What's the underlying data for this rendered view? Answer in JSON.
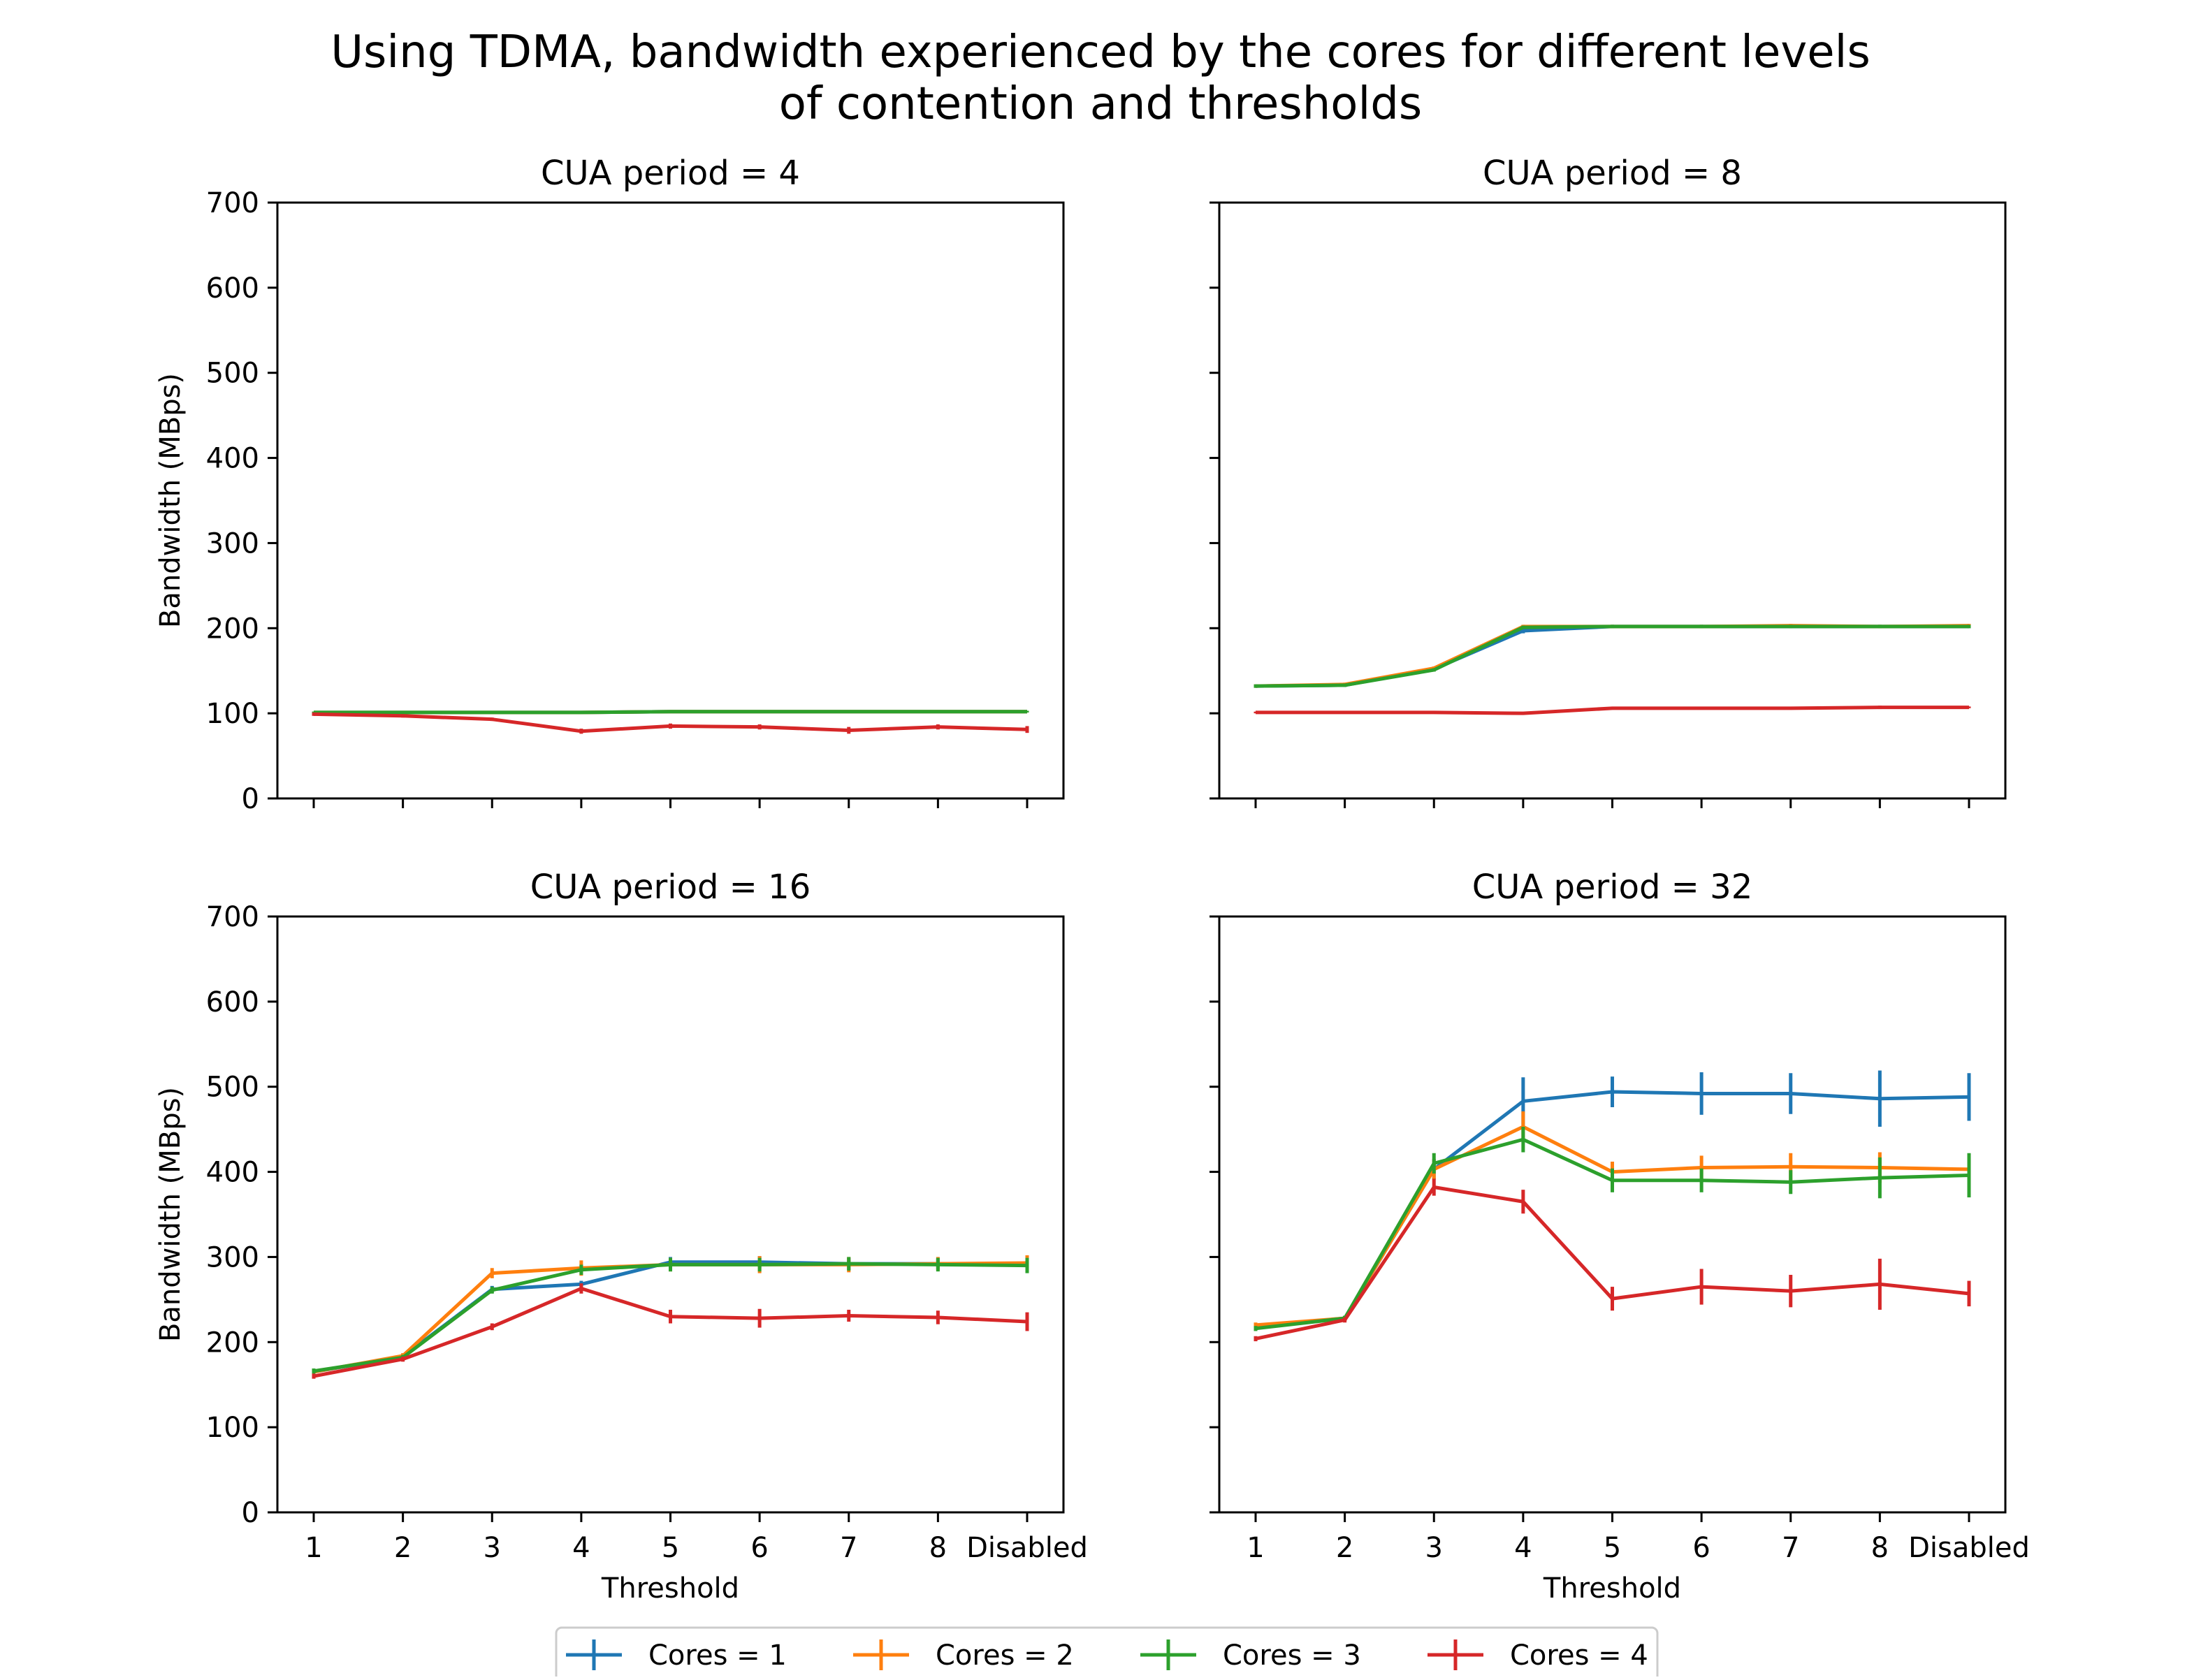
{
  "title": {
    "line1": "Using TDMA, bandwidth experienced by the cores for different levels",
    "line2": "of contention and thresholds"
  },
  "colors": {
    "Cores = 1": "#1f77b4",
    "Cores = 2": "#ff7f0e",
    "Cores = 3": "#2ca02c",
    "Cores = 4": "#d62728"
  },
  "legend": {
    "placement": "bottom-center",
    "entries": [
      "Cores = 1",
      "Cores = 2",
      "Cores = 3",
      "Cores = 4"
    ]
  },
  "chart_data": [
    {
      "type": "line",
      "title": "CUA period = 4",
      "xlabel": "",
      "ylabel": "Bandwidth (MBps)",
      "categories": [
        "1",
        "2",
        "3",
        "4",
        "5",
        "6",
        "7",
        "8",
        "Disabled"
      ],
      "ylim": [
        0,
        700
      ],
      "yticks": [
        0,
        100,
        200,
        300,
        400,
        500,
        600,
        700
      ],
      "show_xticklabels": false,
      "show_yticklabels": true,
      "grid": false,
      "series": [
        {
          "name": "Cores = 1",
          "values": [
            101,
            101,
            101,
            101,
            102,
            102,
            102,
            102,
            102
          ],
          "errors": [
            1,
            1,
            1,
            1,
            1,
            1,
            1,
            1,
            1
          ]
        },
        {
          "name": "Cores = 2",
          "values": [
            101,
            101,
            101,
            101,
            102,
            102,
            102,
            102,
            102
          ],
          "errors": [
            1,
            1,
            1,
            1,
            1,
            1,
            1,
            1,
            1
          ]
        },
        {
          "name": "Cores = 3",
          "values": [
            101,
            101,
            101,
            101,
            102,
            102,
            102,
            102,
            102
          ],
          "errors": [
            1,
            1,
            1,
            1,
            1,
            1,
            1,
            1,
            1
          ]
        },
        {
          "name": "Cores = 4",
          "values": [
            99,
            97,
            93,
            79,
            85,
            84,
            80,
            84,
            81
          ],
          "errors": [
            2,
            2,
            2,
            3,
            3,
            3,
            4,
            3,
            4
          ]
        }
      ]
    },
    {
      "type": "line",
      "title": "CUA period = 8",
      "xlabel": "",
      "ylabel": "",
      "categories": [
        "1",
        "2",
        "3",
        "4",
        "5",
        "6",
        "7",
        "8",
        "Disabled"
      ],
      "ylim": [
        0,
        700
      ],
      "yticks": [
        0,
        100,
        200,
        300,
        400,
        500,
        600,
        700
      ],
      "show_xticklabels": false,
      "show_yticklabels": false,
      "grid": false,
      "series": [
        {
          "name": "Cores = 1",
          "values": [
            132,
            133,
            152,
            197,
            202,
            202,
            202,
            202,
            202
          ],
          "errors": [
            2,
            2,
            2,
            3,
            2,
            2,
            2,
            2,
            2
          ]
        },
        {
          "name": "Cores = 2",
          "values": [
            132,
            134,
            153,
            202,
            202,
            202,
            203,
            202,
            203
          ],
          "errors": [
            2,
            2,
            2,
            2,
            2,
            2,
            2,
            2,
            2
          ]
        },
        {
          "name": "Cores = 3",
          "values": [
            132,
            133,
            151,
            201,
            202,
            202,
            202,
            202,
            202
          ],
          "errors": [
            2,
            2,
            2,
            2,
            2,
            2,
            2,
            2,
            2
          ]
        },
        {
          "name": "Cores = 4",
          "values": [
            101,
            101,
            101,
            100,
            106,
            106,
            106,
            107,
            107
          ],
          "errors": [
            1,
            1,
            1,
            1,
            1,
            1,
            1,
            2,
            1
          ]
        }
      ]
    },
    {
      "type": "line",
      "title": "CUA period = 16",
      "xlabel": "Threshold",
      "ylabel": "Bandwidth (MBps)",
      "categories": [
        "1",
        "2",
        "3",
        "4",
        "5",
        "6",
        "7",
        "8",
        "Disabled"
      ],
      "ylim": [
        0,
        700
      ],
      "yticks": [
        0,
        100,
        200,
        300,
        400,
        500,
        600,
        700
      ],
      "show_xticklabels": true,
      "show_yticklabels": true,
      "grid": false,
      "series": [
        {
          "name": "Cores = 1",
          "values": [
            165,
            183,
            262,
            268,
            294,
            294,
            292,
            292,
            292
          ],
          "errors": [
            3,
            3,
            4,
            4,
            6,
            7,
            7,
            6,
            7
          ]
        },
        {
          "name": "Cores = 2",
          "values": [
            165,
            184,
            281,
            287,
            291,
            291,
            291,
            292,
            293
          ],
          "errors": [
            3,
            3,
            6,
            9,
            8,
            10,
            9,
            8,
            9
          ]
        },
        {
          "name": "Cores = 3",
          "values": [
            166,
            182,
            261,
            285,
            291,
            291,
            292,
            291,
            290
          ],
          "errors": [
            3,
            3,
            4,
            6,
            8,
            8,
            8,
            8,
            9
          ]
        },
        {
          "name": "Cores = 4",
          "values": [
            160,
            180,
            218,
            263,
            230,
            228,
            231,
            229,
            224
          ],
          "errors": [
            3,
            3,
            4,
            6,
            8,
            11,
            7,
            8,
            11
          ]
        }
      ]
    },
    {
      "type": "line",
      "title": "CUA period = 32",
      "xlabel": "Threshold",
      "ylabel": "",
      "categories": [
        "1",
        "2",
        "3",
        "4",
        "5",
        "6",
        "7",
        "8",
        "Disabled"
      ],
      "ylim": [
        0,
        700
      ],
      "yticks": [
        0,
        100,
        200,
        300,
        400,
        500,
        600,
        700
      ],
      "show_xticklabels": true,
      "show_yticklabels": false,
      "grid": false,
      "series": [
        {
          "name": "Cores = 1",
          "values": [
            218,
            228,
            403,
            483,
            494,
            492,
            492,
            486,
            488
          ],
          "errors": [
            3,
            3,
            12,
            28,
            18,
            25,
            24,
            33,
            28
          ]
        },
        {
          "name": "Cores = 2",
          "values": [
            220,
            228,
            403,
            453,
            400,
            405,
            406,
            405,
            403
          ],
          "errors": [
            3,
            3,
            12,
            18,
            12,
            14,
            16,
            18,
            15
          ]
        },
        {
          "name": "Cores = 3",
          "values": [
            216,
            228,
            410,
            438,
            390,
            390,
            388,
            393,
            396
          ],
          "errors": [
            3,
            3,
            12,
            15,
            14,
            14,
            14,
            24,
            26
          ]
        },
        {
          "name": "Cores = 4",
          "values": [
            204,
            226,
            382,
            365,
            251,
            265,
            260,
            268,
            257
          ],
          "errors": [
            3,
            3,
            10,
            14,
            14,
            21,
            19,
            30,
            15
          ]
        }
      ]
    }
  ]
}
